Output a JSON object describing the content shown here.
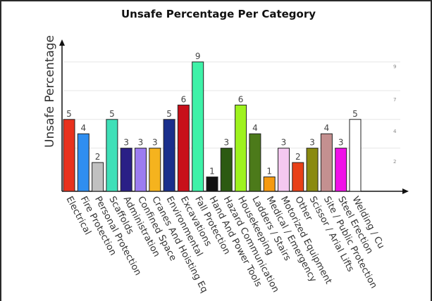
{
  "chart_data": {
    "type": "bar",
    "title": "Unsafe Percentage Per Category",
    "xlabel": "",
    "ylabel": "Unsafe Percentage",
    "ylim": [
      0,
      9
    ],
    "grid": true,
    "yticks": [
      "2",
      "4",
      "7",
      "9"
    ],
    "categories": [
      "Electrical",
      "Fire Protection",
      "Personal Protection",
      "Scaffolds",
      "Administration",
      "Confined Space",
      "Cranes And Hoisting Eq",
      "Environmental",
      "Excavations",
      "Fall Protection",
      "Hand And Power Tools",
      "Hazard Communication",
      "Housekeeping",
      "Ladders / Stairs",
      "Medical / Emergency",
      "Motorized Equipment",
      "Other",
      "Scissor / Arial Lifts",
      "Site / Public Protection",
      "Steel Erection",
      "Welding / Cu"
    ],
    "values": [
      5,
      4,
      2,
      5,
      3,
      3,
      3,
      5,
      6,
      9,
      1,
      3,
      6,
      4,
      1,
      3,
      2,
      3,
      4,
      3,
      5
    ],
    "colors": [
      "#e8321e",
      "#2f8ef0",
      "#c0c0c0",
      "#3fe0b8",
      "#2a1f86",
      "#9c7cf0",
      "#f5b31e",
      "#1a2f8c",
      "#c8101a",
      "#3ef2a8",
      "#111111",
      "#2c5a12",
      "#9ef21e",
      "#4c7a1a",
      "#f59a10",
      "#f4c8f0",
      "#e84018",
      "#8a8a10",
      "#c49090",
      "#f010e8",
      "#ffffff"
    ]
  }
}
